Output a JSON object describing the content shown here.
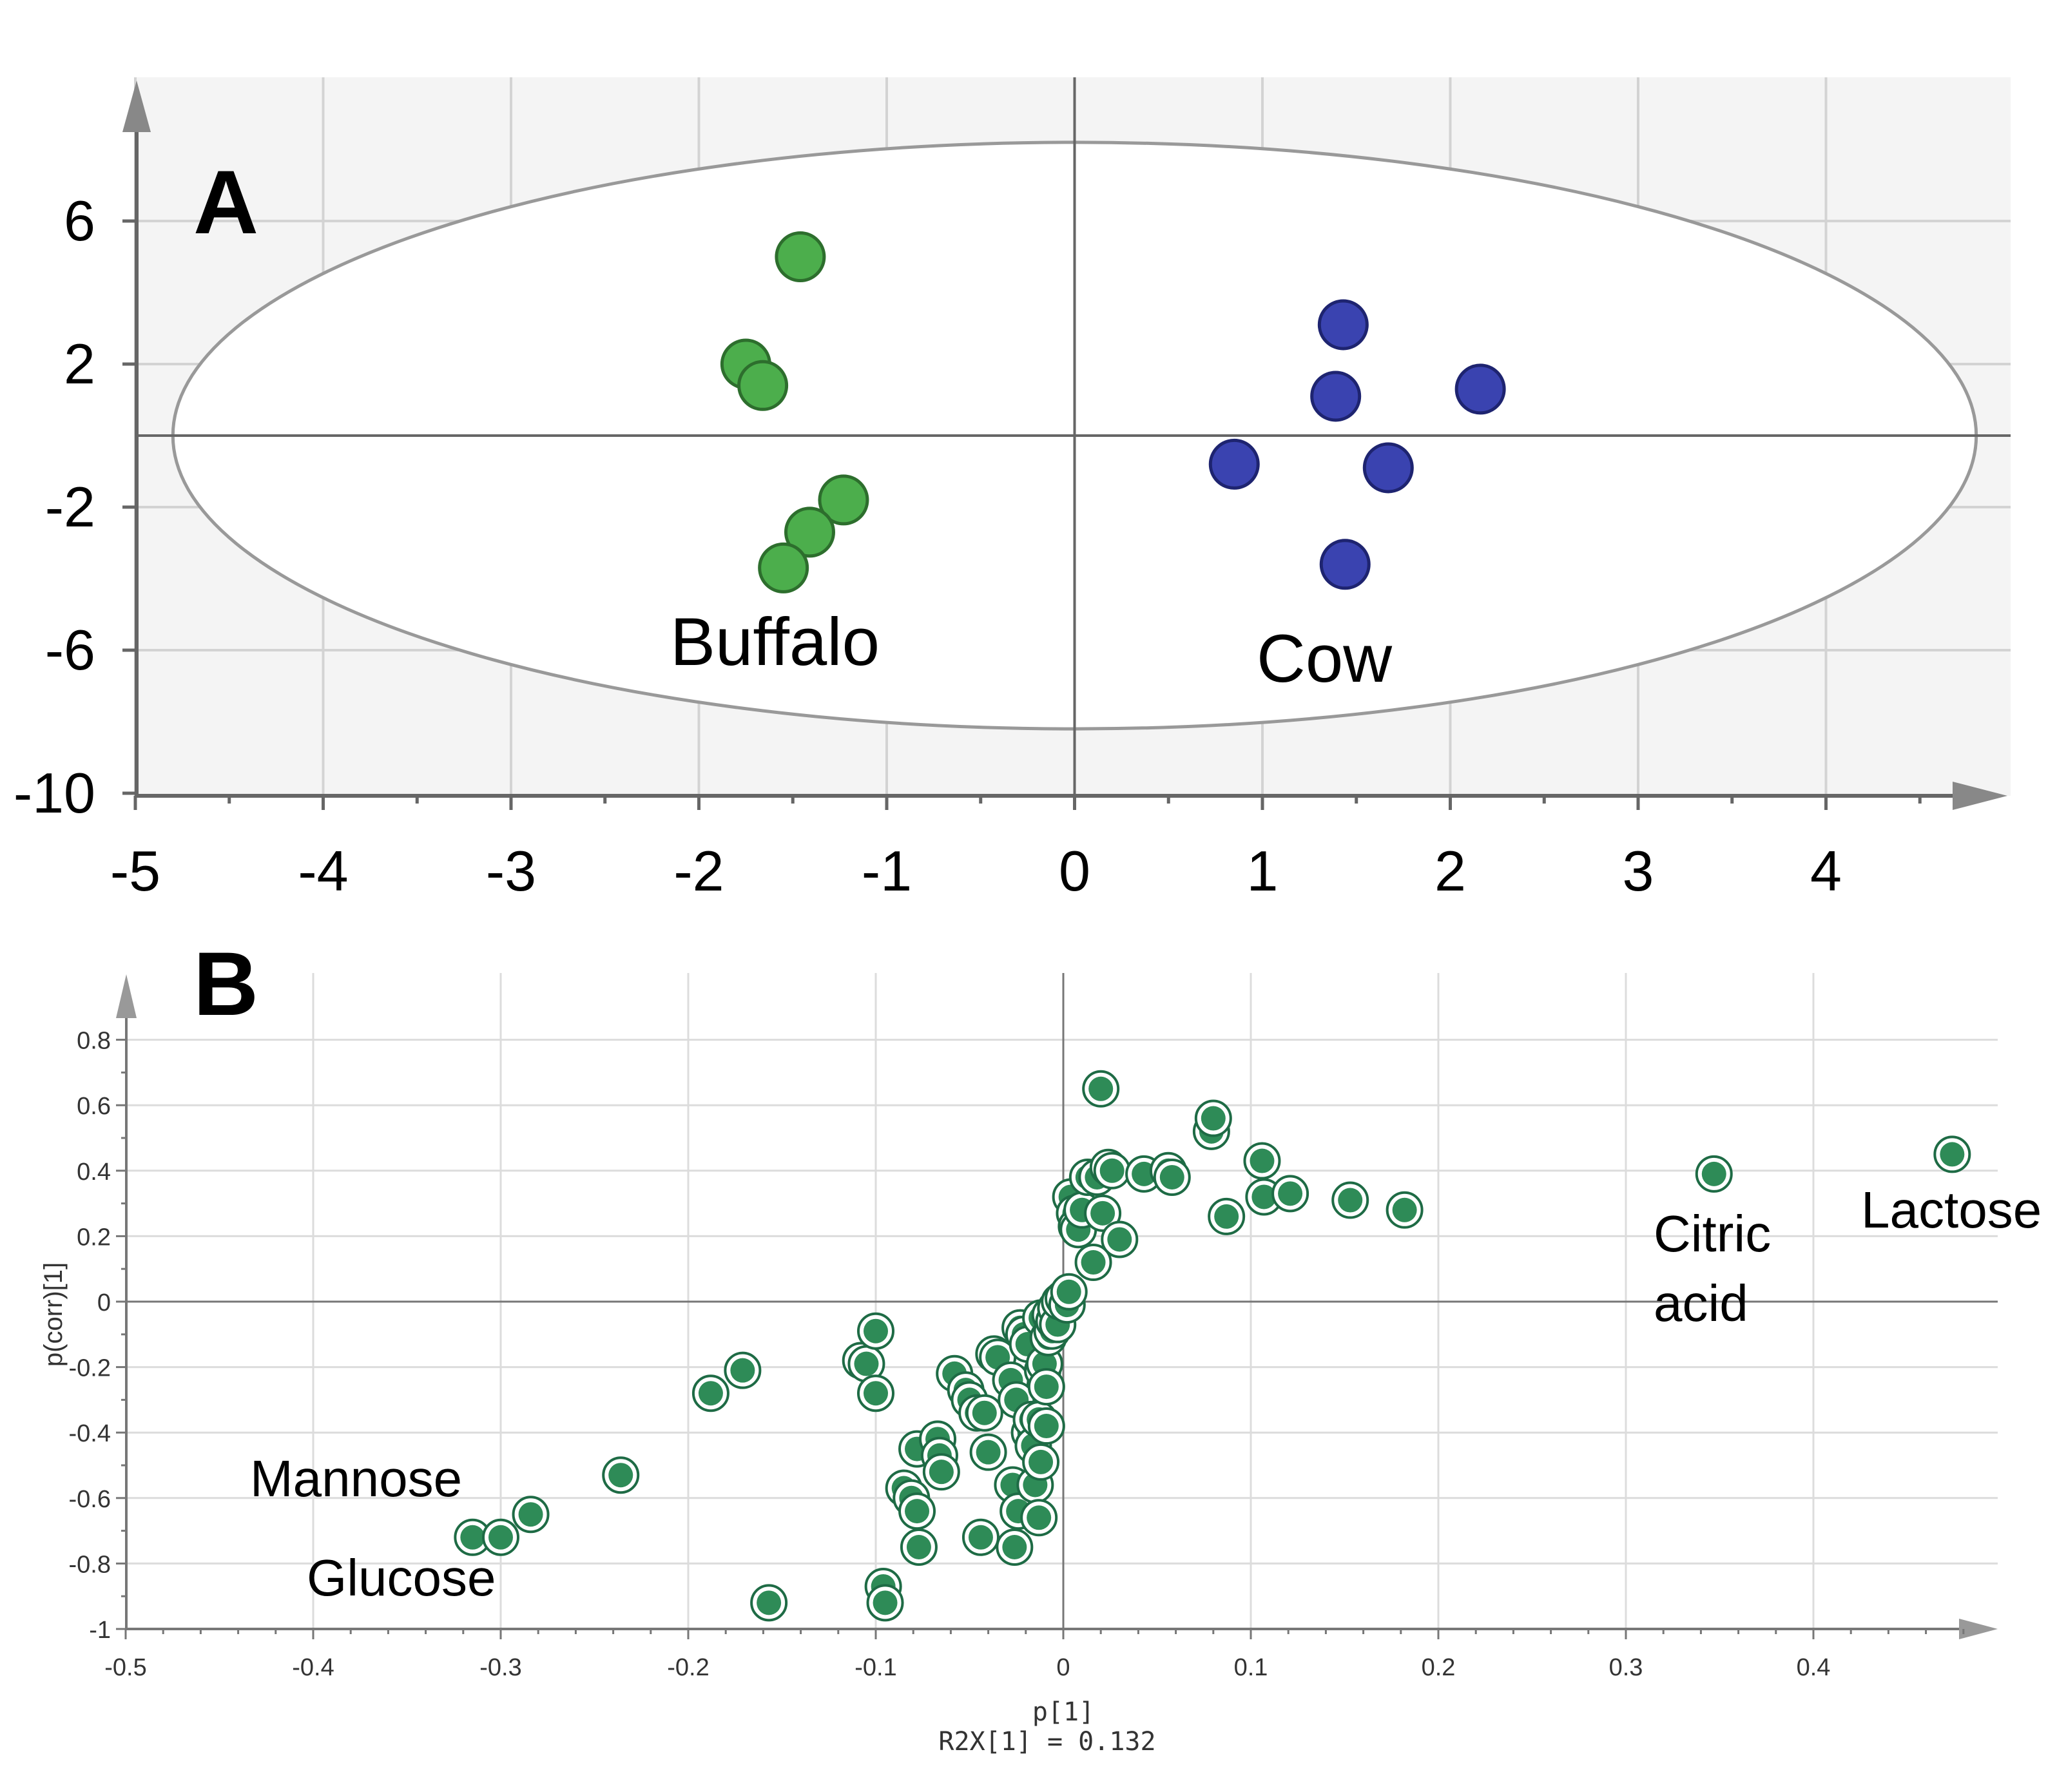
{
  "chart_data": [
    {
      "type": "scatter",
      "panel_label": "A",
      "title": "",
      "xlabel": "",
      "ylabel": "",
      "xlim": [
        -5,
        5
      ],
      "ylim": [
        -10,
        10
      ],
      "x_ticks": [
        -5,
        -4,
        -3,
        -2,
        -1,
        0,
        1,
        2,
        3,
        4
      ],
      "x_tick_labels": [
        "-5",
        "-4",
        "-3",
        "-2",
        "-1",
        "0",
        "1",
        "2",
        "3",
        "4"
      ],
      "y_ticks": [
        6,
        2,
        -2,
        -6,
        -10
      ],
      "y_tick_labels": [
        "6",
        "2",
        "-2",
        "-6",
        "-10"
      ],
      "grid": true,
      "ellipse": {
        "cx": 0,
        "cy": 0,
        "rx": 4.8,
        "ry": 8.2
      },
      "series": [
        {
          "color": "#4cae4c",
          "points": [
            [
              -1.46,
              5.0
            ],
            [
              -1.75,
              2.0
            ],
            [
              -1.66,
              1.4
            ],
            [
              -1.23,
              -1.8
            ],
            [
              -1.41,
              -2.7
            ],
            [
              -1.55,
              -3.7
            ]
          ]
        },
        {
          "color": "#3a43b0",
          "points": [
            [
              1.43,
              3.1
            ],
            [
              1.39,
              1.1
            ],
            [
              2.16,
              1.3
            ],
            [
              0.85,
              -0.8
            ],
            [
              1.67,
              -0.9
            ],
            [
              1.44,
              -3.6
            ]
          ]
        }
      ],
      "annotations": [
        {
          "text": "Buffalo",
          "x": -1.52,
          "y": -5.8
        },
        {
          "text": "Cow",
          "x": 1.35,
          "y": -6.2
        }
      ]
    },
    {
      "type": "scatter",
      "panel_label": "B",
      "title": "",
      "xlabel": "p[1]",
      "xlabel_sub": "R2X[1] = 0.132",
      "ylabel": "p(corr)[1]",
      "xlim": [
        -0.5,
        0.5
      ],
      "ylim": [
        -1,
        1
      ],
      "x_ticks": [
        -0.5,
        -0.4,
        -0.3,
        -0.2,
        -0.1,
        0,
        0.1,
        0.2,
        0.3,
        0.4
      ],
      "x_tick_labels": [
        "-0.5",
        "-0.4",
        "-0.3",
        "-0.2",
        "-0.1",
        "0",
        "0.1",
        "0.2",
        "0.3",
        "0.4"
      ],
      "y_ticks": [
        0.8,
        0.6,
        0.4,
        0.2,
        0,
        -0.2,
        -0.4,
        -0.6,
        -0.8,
        -1
      ],
      "y_tick_labels": [
        "0.8",
        "0.6",
        "0.4",
        "0.2",
        "0",
        "-0.2",
        "-0.4",
        "-0.6",
        "-0.8",
        "-1"
      ],
      "grid": true,
      "series": [
        {
          "color": "#2e8b57",
          "points": [
            [
              -0.315,
              -0.72
            ],
            [
              -0.3,
              -0.72
            ],
            [
              -0.284,
              -0.65
            ],
            [
              -0.236,
              -0.53
            ],
            [
              -0.188,
              -0.28
            ],
            [
              -0.171,
              -0.21
            ],
            [
              -0.157,
              -0.92
            ],
            [
              -0.108,
              -0.18
            ],
            [
              -0.105,
              -0.19
            ],
            [
              -0.1,
              -0.09
            ],
            [
              -0.1,
              -0.28
            ],
            [
              -0.096,
              -0.87
            ],
            [
              -0.095,
              -0.92
            ],
            [
              -0.085,
              -0.57
            ],
            [
              -0.081,
              -0.6
            ],
            [
              -0.078,
              -0.45
            ],
            [
              -0.078,
              -0.64
            ],
            [
              -0.077,
              -0.75
            ],
            [
              -0.067,
              -0.42
            ],
            [
              -0.066,
              -0.47
            ],
            [
              -0.065,
              -0.52
            ],
            [
              -0.058,
              -0.22
            ],
            [
              -0.052,
              -0.27
            ],
            [
              -0.05,
              -0.3
            ],
            [
              -0.046,
              -0.34
            ],
            [
              -0.044,
              -0.72
            ],
            [
              -0.042,
              -0.34
            ],
            [
              -0.04,
              -0.46
            ],
            [
              -0.037,
              -0.16
            ],
            [
              -0.035,
              -0.17
            ],
            [
              -0.028,
              -0.24
            ],
            [
              -0.027,
              -0.56
            ],
            [
              -0.026,
              -0.75
            ],
            [
              -0.025,
              -0.3
            ],
            [
              -0.024,
              -0.64
            ],
            [
              -0.023,
              -0.08
            ],
            [
              -0.021,
              -0.1
            ],
            [
              -0.019,
              -0.13
            ],
            [
              -0.018,
              -0.4
            ],
            [
              -0.017,
              -0.36
            ],
            [
              -0.016,
              -0.44
            ],
            [
              -0.015,
              -0.56
            ],
            [
              -0.013,
              -0.66
            ],
            [
              -0.013,
              -0.36
            ],
            [
              -0.012,
              -0.49
            ],
            [
              -0.012,
              -0.05
            ],
            [
              -0.011,
              -0.21
            ],
            [
              -0.01,
              -0.19
            ],
            [
              -0.009,
              -0.26
            ],
            [
              -0.009,
              -0.38
            ],
            [
              -0.008,
              -0.11
            ],
            [
              -0.007,
              -0.04
            ],
            [
              -0.006,
              -0.09
            ],
            [
              -0.005,
              -0.06
            ],
            [
              -0.004,
              -0.02
            ],
            [
              -0.003,
              -0.07
            ],
            [
              -0.002,
              0.0
            ],
            [
              0.0,
              0.01
            ],
            [
              0.002,
              -0.01
            ],
            [
              0.003,
              0.03
            ],
            [
              0.004,
              0.32
            ],
            [
              0.006,
              0.27
            ],
            [
              0.007,
              0.23
            ],
            [
              0.008,
              0.22
            ],
            [
              0.01,
              0.28
            ],
            [
              0.013,
              0.38
            ],
            [
              0.016,
              0.12
            ],
            [
              0.018,
              0.38
            ],
            [
              0.02,
              0.65
            ],
            [
              0.021,
              0.27
            ],
            [
              0.024,
              0.41
            ],
            [
              0.026,
              0.4
            ],
            [
              0.03,
              0.19
            ],
            [
              0.043,
              0.39
            ],
            [
              0.056,
              0.4
            ],
            [
              0.058,
              0.38
            ],
            [
              0.079,
              0.52
            ],
            [
              0.08,
              0.56
            ],
            [
              0.087,
              0.26
            ],
            [
              0.106,
              0.43
            ],
            [
              0.107,
              0.32
            ],
            [
              0.121,
              0.33
            ],
            [
              0.153,
              0.31
            ],
            [
              0.182,
              0.28
            ],
            [
              0.347,
              0.39
            ],
            [
              0.474,
              0.45
            ]
          ]
        }
      ],
      "annotations": [
        {
          "text": "Lactose"
        },
        {
          "text": "Citric"
        },
        {
          "text": "acid"
        },
        {
          "text": "Mannose"
        },
        {
          "text": "Glucose"
        }
      ]
    }
  ]
}
